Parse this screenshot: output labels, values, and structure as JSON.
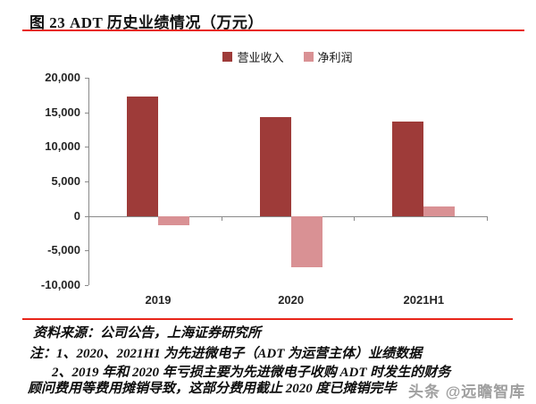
{
  "header": {
    "title": "图 23 ADT 历史业绩情况（万元）"
  },
  "legend": [
    {
      "label": "营业收入",
      "color": "#9e3b39"
    },
    {
      "label": "净利润",
      "color": "#d99194"
    }
  ],
  "chart_data": {
    "type": "bar",
    "title": "ADT 历史业绩情况（万元）",
    "categories": [
      "2019",
      "2020",
      "2021H1"
    ],
    "series": [
      {
        "name": "营业收入",
        "color": "#9e3b39",
        "values": [
          17300,
          14300,
          13600
        ]
      },
      {
        "name": "净利润",
        "color": "#d99194",
        "values": [
          -1400,
          -7400,
          1400
        ]
      }
    ],
    "ylim": [
      -10000,
      20000
    ],
    "yticks": {
      "values": [
        20000,
        15000,
        10000,
        5000,
        0,
        -5000,
        -10000
      ],
      "labels": [
        "20,000",
        "15,000",
        "10,000",
        "5,000",
        "0",
        "-5,000",
        "-10,000"
      ]
    },
    "xlabel": "",
    "ylabel": "",
    "grid": false,
    "legend_position": "top",
    "axis_color": "#898989",
    "tick_label_color": "#262626"
  },
  "footer": {
    "source": "资料来源：公司公告，上海证券研究所",
    "notes": [
      "注：1、2020、2021H1 为先进微电子（ADT 为运营主体）业绩数据",
      "2、2019 年和 2020 年亏损主要为先进微电子收购 ADT 时发生的财务",
      "顾问费用等费用摊销导致，这部分费用截止 2020 度已摊销完毕"
    ],
    "watermark": "头条 @远瞻智库"
  },
  "colors": {
    "rule_red": "#e8251a",
    "watermark_gray": "#8f8f8f"
  }
}
